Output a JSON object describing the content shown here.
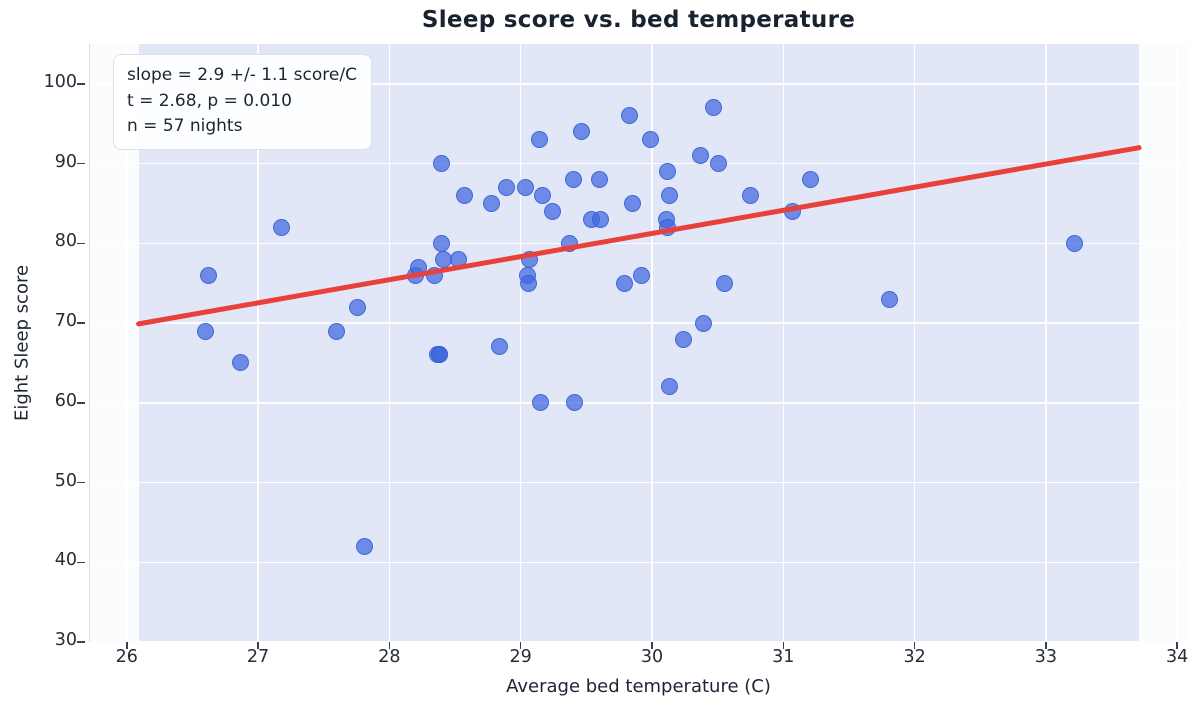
{
  "title": "Sleep score vs. bed temperature",
  "annotation": {
    "line1": "slope = 2.9 +/- 1.1 score/C",
    "line2": "t = 2.68, p = 0.010",
    "line3": "n = 57 nights"
  },
  "chart_data": {
    "type": "scatter",
    "title": "Sleep score vs. bed temperature",
    "xlabel": "Average bed temperature (C)",
    "ylabel": "Eight Sleep score",
    "xlim": [
      25.72,
      34.09
    ],
    "ylim": [
      30,
      105
    ],
    "x_ticks": [
      26,
      27,
      28,
      29,
      30,
      31,
      32,
      33,
      34
    ],
    "y_ticks": [
      30,
      40,
      50,
      60,
      70,
      80,
      90,
      100
    ],
    "grid": true,
    "legend": "none",
    "shaded_band_x": [
      26.09,
      33.71
    ],
    "trend_line": {
      "x": [
        26.09,
        33.71
      ],
      "y": [
        69.9,
        92.0
      ],
      "slope_per_C": 2.9
    },
    "stats": {
      "slope": 2.9,
      "slope_err": 1.1,
      "t": 2.68,
      "p": 0.01,
      "n_nights": 57
    },
    "points": [
      [
        26.6,
        69
      ],
      [
        26.62,
        76
      ],
      [
        26.87,
        65
      ],
      [
        27.18,
        82
      ],
      [
        27.6,
        69
      ],
      [
        27.76,
        72
      ],
      [
        27.81,
        42
      ],
      [
        28.2,
        76
      ],
      [
        28.22,
        77
      ],
      [
        28.34,
        76
      ],
      [
        28.37,
        66
      ],
      [
        28.38,
        66
      ],
      [
        28.38,
        66
      ],
      [
        28.4,
        90
      ],
      [
        28.4,
        80
      ],
      [
        28.41,
        78
      ],
      [
        28.53,
        78
      ],
      [
        28.57,
        86
      ],
      [
        28.78,
        85
      ],
      [
        28.84,
        67
      ],
      [
        28.89,
        87
      ],
      [
        29.04,
        87
      ],
      [
        29.05,
        76
      ],
      [
        29.06,
        75
      ],
      [
        29.07,
        78
      ],
      [
        29.14,
        93
      ],
      [
        29.15,
        60
      ],
      [
        29.17,
        86
      ],
      [
        29.24,
        84
      ],
      [
        29.37,
        80
      ],
      [
        29.4,
        88
      ],
      [
        29.41,
        60
      ],
      [
        29.46,
        94
      ],
      [
        29.54,
        83
      ],
      [
        29.6,
        88
      ],
      [
        29.61,
        83
      ],
      [
        29.79,
        75
      ],
      [
        29.83,
        96
      ],
      [
        29.85,
        85
      ],
      [
        29.92,
        76
      ],
      [
        29.99,
        93
      ],
      [
        30.11,
        83
      ],
      [
        30.12,
        82
      ],
      [
        30.12,
        89
      ],
      [
        30.13,
        86
      ],
      [
        30.13,
        62
      ],
      [
        30.24,
        68
      ],
      [
        30.37,
        91
      ],
      [
        30.39,
        70
      ],
      [
        30.47,
        97
      ],
      [
        30.51,
        90
      ],
      [
        30.55,
        75
      ],
      [
        30.75,
        86
      ],
      [
        31.07,
        84
      ],
      [
        31.21,
        88
      ],
      [
        31.81,
        73
      ],
      [
        33.22,
        80
      ]
    ],
    "colors": {
      "point_fill": "#4068df",
      "point_edge": "#3459d0",
      "trend": "#e8413c",
      "band": "#e2e7f7",
      "background": "#fbfcfe"
    }
  }
}
